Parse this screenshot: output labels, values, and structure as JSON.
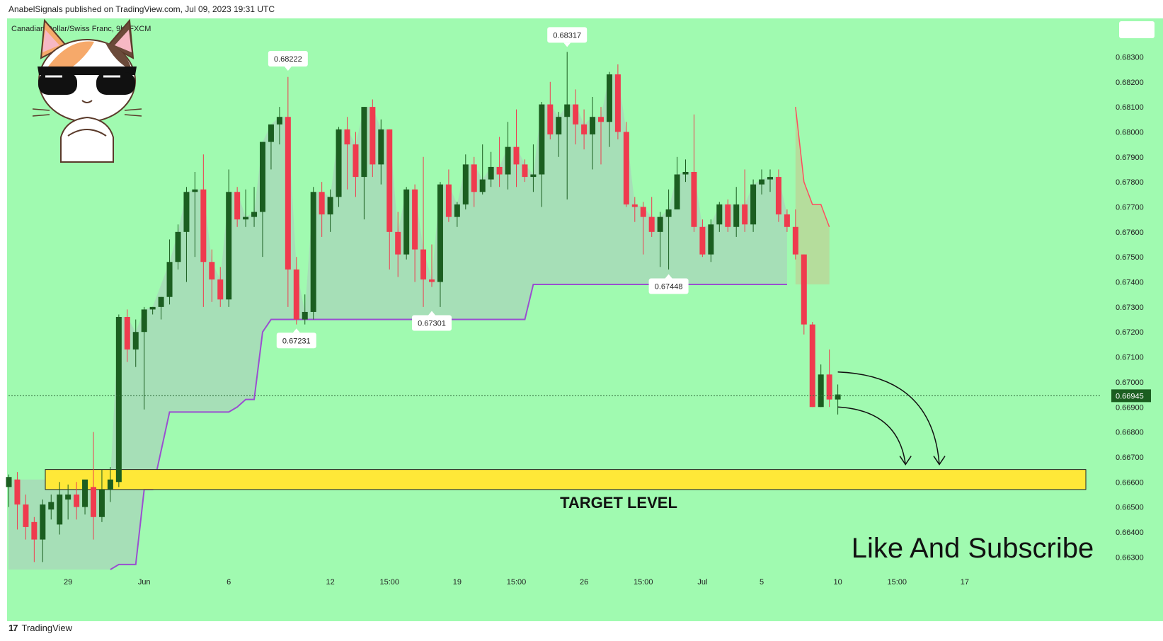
{
  "header": {
    "published_text": "AnabelSignals published on TradingView.com, Jul 09, 2023 19:31 UTC"
  },
  "footer": {
    "brand": "TradingView"
  },
  "colors": {
    "background": "#a0fab0",
    "bull": "#1b5e20",
    "bear": "#ef3b4e",
    "stop_line": "#9a4fd0",
    "target_zone": "#ffe838",
    "fill": "#a6dcb8"
  },
  "chart_data": {
    "type": "candlestick",
    "title": "Canadian Dollar/Swiss Franc, 9h, FXCM",
    "timeframe": "9h",
    "ylim": [
      0.6625,
      0.6842
    ],
    "y_ticks": [
      "0.68300",
      "0.68200",
      "0.68100",
      "0.68000",
      "0.67900",
      "0.67800",
      "0.67700",
      "0.67600",
      "0.67500",
      "0.67400",
      "0.67300",
      "0.67200",
      "0.67100",
      "0.67000",
      "0.66900",
      "0.66800",
      "0.66700",
      "0.66600",
      "0.66500",
      "0.66400",
      "0.66300"
    ],
    "x_ticks": [
      {
        "label": "29",
        "bar": 7
      },
      {
        "label": "Jun",
        "bar": 16
      },
      {
        "label": "6",
        "bar": 26
      },
      {
        "label": "12",
        "bar": 38
      },
      {
        "label": "15:00",
        "bar": 45
      },
      {
        "label": "19",
        "bar": 53
      },
      {
        "label": "15:00",
        "bar": 60
      },
      {
        "label": "26",
        "bar": 68
      },
      {
        "label": "15:00",
        "bar": 75
      },
      {
        "label": "Jul",
        "bar": 82
      },
      {
        "label": "5",
        "bar": 89
      },
      {
        "label": "10",
        "bar": 98
      },
      {
        "label": "15:00",
        "bar": 105
      },
      {
        "label": "17",
        "bar": 113
      }
    ],
    "last_price": "0.66945",
    "candles": [
      [
        0.6658,
        0.6662,
        0.665,
        0.6663
      ],
      [
        0.6661,
        0.6651,
        0.6641,
        0.6664
      ],
      [
        0.6651,
        0.6642,
        0.6637,
        0.6655
      ],
      [
        0.6644,
        0.6637,
        0.6628,
        0.6646
      ],
      [
        0.6637,
        0.6651,
        0.6628,
        0.6653
      ],
      [
        0.6649,
        0.6652,
        0.6645,
        0.6655
      ],
      [
        0.6643,
        0.6655,
        0.6639,
        0.666
      ],
      [
        0.6653,
        0.6655,
        0.6645,
        0.6659
      ],
      [
        0.6655,
        0.665,
        0.6645,
        0.666
      ],
      [
        0.665,
        0.6661,
        0.6647,
        0.666
      ],
      [
        0.6658,
        0.6646,
        0.6637,
        0.668
      ],
      [
        0.6646,
        0.6657,
        0.6644,
        0.6665
      ],
      [
        0.6657,
        0.6661,
        0.6652,
        0.6666
      ],
      [
        0.666,
        0.6726,
        0.6658,
        0.6727
      ],
      [
        0.6726,
        0.6713,
        0.6708,
        0.6729
      ],
      [
        0.6713,
        0.672,
        0.6706,
        0.6725
      ],
      [
        0.672,
        0.6729,
        0.6689,
        0.673
      ],
      [
        0.6729,
        0.673,
        0.6727,
        0.673
      ],
      [
        0.673,
        0.6734,
        0.6725,
        0.6734
      ],
      [
        0.6734,
        0.6748,
        0.6731,
        0.6757
      ],
      [
        0.6748,
        0.676,
        0.6745,
        0.6763
      ],
      [
        0.676,
        0.6776,
        0.674,
        0.6778
      ],
      [
        0.6776,
        0.6777,
        0.675,
        0.6784
      ],
      [
        0.6777,
        0.6748,
        0.673,
        0.6791
      ],
      [
        0.6748,
        0.6741,
        0.6732,
        0.6753
      ],
      [
        0.6741,
        0.6733,
        0.673,
        0.6746
      ],
      [
        0.6733,
        0.6776,
        0.673,
        0.6785
      ],
      [
        0.6776,
        0.6765,
        0.6762,
        0.6778
      ],
      [
        0.6765,
        0.6766,
        0.6762,
        0.6777
      ],
      [
        0.6766,
        0.6768,
        0.6762,
        0.6778
      ],
      [
        0.6768,
        0.6796,
        0.675,
        0.6796
      ],
      [
        0.6796,
        0.6803,
        0.6785,
        0.6803
      ],
      [
        0.6803,
        0.6806,
        0.6795,
        0.681
      ],
      [
        0.6806,
        0.6745,
        0.673,
        0.6822
      ],
      [
        0.6745,
        0.6725,
        0.6723,
        0.675
      ],
      [
        0.6725,
        0.6728,
        0.6723,
        0.6735
      ],
      [
        0.6728,
        0.6776,
        0.6725,
        0.6778
      ],
      [
        0.6776,
        0.6767,
        0.6758,
        0.678
      ],
      [
        0.6767,
        0.6774,
        0.676,
        0.6777
      ],
      [
        0.6774,
        0.6801,
        0.677,
        0.6802
      ],
      [
        0.6801,
        0.6795,
        0.6777,
        0.6806
      ],
      [
        0.6795,
        0.6782,
        0.6774,
        0.68
      ],
      [
        0.6782,
        0.681,
        0.6765,
        0.681
      ],
      [
        0.681,
        0.6787,
        0.6782,
        0.6813
      ],
      [
        0.6787,
        0.6801,
        0.6779,
        0.6805
      ],
      [
        0.6801,
        0.676,
        0.6745,
        0.6801
      ],
      [
        0.676,
        0.6751,
        0.6742,
        0.6768
      ],
      [
        0.6751,
        0.6777,
        0.6749,
        0.6778
      ],
      [
        0.6777,
        0.6753,
        0.674,
        0.6779
      ],
      [
        0.6753,
        0.6741,
        0.673,
        0.679
      ],
      [
        0.6741,
        0.674,
        0.6738,
        0.6755
      ],
      [
        0.674,
        0.6779,
        0.673,
        0.678
      ],
      [
        0.6779,
        0.6766,
        0.6764,
        0.6785
      ],
      [
        0.6766,
        0.6771,
        0.6762,
        0.6772
      ],
      [
        0.6771,
        0.6787,
        0.6769,
        0.6791
      ],
      [
        0.6787,
        0.6776,
        0.677,
        0.679
      ],
      [
        0.6776,
        0.6781,
        0.6775,
        0.6795
      ],
      [
        0.6781,
        0.6786,
        0.6778,
        0.6792
      ],
      [
        0.6786,
        0.6783,
        0.6778,
        0.6798
      ],
      [
        0.6783,
        0.6794,
        0.6777,
        0.6804
      ],
      [
        0.6794,
        0.6787,
        0.6778,
        0.6809
      ],
      [
        0.6787,
        0.6782,
        0.678,
        0.6789
      ],
      [
        0.6782,
        0.6783,
        0.6776,
        0.6795
      ],
      [
        0.6783,
        0.6811,
        0.677,
        0.6812
      ],
      [
        0.6811,
        0.6799,
        0.6797,
        0.682
      ],
      [
        0.6799,
        0.6806,
        0.679,
        0.6808
      ],
      [
        0.6806,
        0.6811,
        0.6773,
        0.6832
      ],
      [
        0.6811,
        0.6803,
        0.6795,
        0.6817
      ],
      [
        0.6803,
        0.6799,
        0.6793,
        0.6809
      ],
      [
        0.6799,
        0.6806,
        0.6785,
        0.6814
      ],
      [
        0.6806,
        0.6804,
        0.6787,
        0.681
      ],
      [
        0.6804,
        0.6823,
        0.6794,
        0.6824
      ],
      [
        0.6823,
        0.68,
        0.6797,
        0.6827
      ],
      [
        0.68,
        0.6771,
        0.677,
        0.6804
      ],
      [
        0.6771,
        0.677,
        0.6764,
        0.6774
      ],
      [
        0.677,
        0.6766,
        0.6751,
        0.6772
      ],
      [
        0.6766,
        0.676,
        0.6758,
        0.6774
      ],
      [
        0.676,
        0.6766,
        0.6746,
        0.6768
      ],
      [
        0.6766,
        0.6769,
        0.6745,
        0.6777
      ],
      [
        0.6769,
        0.6783,
        0.677,
        0.679
      ],
      [
        0.6783,
        0.6784,
        0.678,
        0.6789
      ],
      [
        0.6784,
        0.6762,
        0.676,
        0.6807
      ],
      [
        0.6762,
        0.6751,
        0.675,
        0.6765
      ],
      [
        0.6751,
        0.6763,
        0.6748,
        0.6765
      ],
      [
        0.6763,
        0.6771,
        0.676,
        0.6772
      ],
      [
        0.6771,
        0.6762,
        0.676,
        0.6773
      ],
      [
        0.6762,
        0.6771,
        0.6758,
        0.6778
      ],
      [
        0.6771,
        0.6763,
        0.676,
        0.6785
      ],
      [
        0.6763,
        0.6779,
        0.676,
        0.6781
      ],
      [
        0.6779,
        0.6781,
        0.6775,
        0.6785
      ],
      [
        0.6781,
        0.6782,
        0.6776,
        0.6785
      ],
      [
        0.6782,
        0.6767,
        0.6764,
        0.6785
      ],
      [
        0.6767,
        0.6762,
        0.676,
        0.6769
      ],
      [
        0.6762,
        0.6751,
        0.6749,
        0.6769
      ],
      [
        0.6751,
        0.6723,
        0.6719,
        0.6751
      ],
      [
        0.6723,
        0.669,
        0.669,
        0.6724
      ],
      [
        0.669,
        0.6703,
        0.669,
        0.6707
      ],
      [
        0.6703,
        0.6693,
        0.669,
        0.6713
      ],
      [
        0.6693,
        0.6695,
        0.6687,
        0.6699
      ]
    ],
    "stop_line": [
      [
        12,
        0.6625
      ],
      [
        13,
        0.6627
      ],
      [
        14,
        0.6627
      ],
      [
        15,
        0.6627
      ],
      [
        16,
        0.6657
      ],
      [
        17,
        0.6657
      ],
      [
        19,
        0.6688
      ],
      [
        20,
        0.6688
      ],
      [
        21,
        0.6688
      ],
      [
        22,
        0.6688
      ],
      [
        23,
        0.6688
      ],
      [
        24,
        0.6688
      ],
      [
        25,
        0.6688
      ],
      [
        26,
        0.6688
      ],
      [
        27,
        0.669
      ],
      [
        28,
        0.6693
      ],
      [
        29,
        0.6693
      ],
      [
        30,
        0.672
      ],
      [
        31,
        0.6725
      ],
      [
        32,
        0.6725
      ],
      [
        33,
        0.6725
      ],
      [
        34,
        0.6725
      ],
      [
        35,
        0.6725
      ],
      [
        36,
        0.6725
      ],
      [
        37,
        0.6725
      ],
      [
        38,
        0.6725
      ],
      [
        39,
        0.6725
      ],
      [
        40,
        0.6725
      ],
      [
        41,
        0.6725
      ],
      [
        42,
        0.6725
      ],
      [
        43,
        0.6725
      ],
      [
        44,
        0.6725
      ],
      [
        45,
        0.6725
      ],
      [
        46,
        0.6725
      ],
      [
        47,
        0.6725
      ],
      [
        48,
        0.6725
      ],
      [
        49,
        0.6725
      ],
      [
        50,
        0.6725
      ],
      [
        51,
        0.6725
      ],
      [
        52,
        0.6725
      ],
      [
        53,
        0.6725
      ],
      [
        54,
        0.6725
      ],
      [
        55,
        0.6725
      ],
      [
        56,
        0.6725
      ],
      [
        57,
        0.6725
      ],
      [
        58,
        0.6725
      ],
      [
        59,
        0.6725
      ],
      [
        60,
        0.6725
      ],
      [
        61,
        0.6725
      ],
      [
        62,
        0.6739
      ],
      [
        63,
        0.6739
      ],
      [
        64,
        0.6739
      ],
      [
        65,
        0.6739
      ],
      [
        66,
        0.6739
      ],
      [
        67,
        0.6739
      ],
      [
        68,
        0.6739
      ],
      [
        69,
        0.6739
      ],
      [
        70,
        0.6739
      ],
      [
        71,
        0.6739
      ],
      [
        72,
        0.6739
      ],
      [
        73,
        0.6739
      ],
      [
        74,
        0.6739
      ],
      [
        75,
        0.6739
      ],
      [
        76,
        0.6739
      ],
      [
        77,
        0.6739
      ],
      [
        78,
        0.6739
      ],
      [
        79,
        0.6739
      ],
      [
        80,
        0.6739
      ],
      [
        81,
        0.6739
      ],
      [
        82,
        0.6739
      ],
      [
        83,
        0.6739
      ],
      [
        84,
        0.6739
      ],
      [
        85,
        0.6739
      ],
      [
        86,
        0.6739
      ],
      [
        87,
        0.6739
      ],
      [
        88,
        0.6739
      ],
      [
        89,
        0.6739
      ],
      [
        90,
        0.6739
      ],
      [
        91,
        0.6739
      ],
      [
        92,
        0.6739
      ]
    ],
    "red_line": [
      [
        93,
        0.681
      ],
      [
        94,
        0.678
      ],
      [
        95,
        0.6771
      ],
      [
        96,
        0.6771
      ],
      [
        97,
        0.6762
      ]
    ],
    "pivot_labels": [
      {
        "text": "0.68222",
        "bar": 33,
        "price": 0.68222,
        "position": "above"
      },
      {
        "text": "0.68317",
        "bar": 66,
        "price": 0.68317,
        "position": "above"
      },
      {
        "text": "0.67231",
        "bar": 34,
        "price": 0.67231,
        "position": "below"
      },
      {
        "text": "0.67301",
        "bar": 50,
        "price": 0.67301,
        "position": "below"
      },
      {
        "text": "0.67448",
        "bar": 78,
        "price": 0.67448,
        "position": "below"
      }
    ],
    "target_zone": {
      "low": 0.6657,
      "high": 0.6665,
      "label": "TARGET LEVEL"
    },
    "projection_arrows": [
      {
        "from_bar": 98,
        "from_price": 0.6704,
        "to_bar": 110,
        "to_price": 0.6667
      },
      {
        "from_bar": 98,
        "from_price": 0.669,
        "to_bar": 106,
        "to_price": 0.6667
      }
    ],
    "footer_text": "Like And Subscribe"
  }
}
